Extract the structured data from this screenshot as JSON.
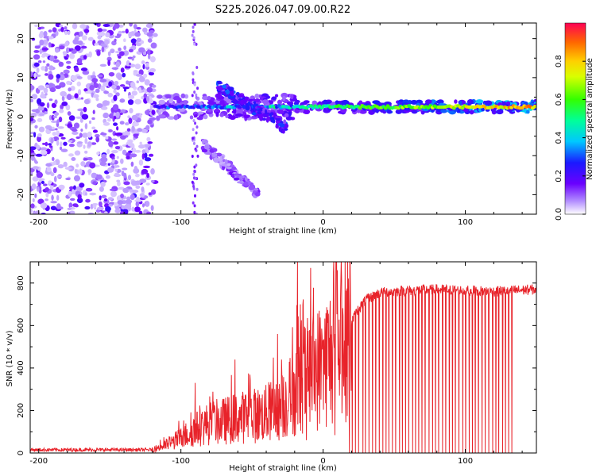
{
  "title": "S225.2026.047.09.00.R22",
  "chart_data": [
    {
      "type": "heatmap",
      "name": "spectrogram",
      "xlabel": "Height of straight line (km)",
      "ylabel": "Frequency (Hz)",
      "xlim": [
        -206,
        150
      ],
      "ylim": [
        -25,
        24
      ],
      "xticks": [
        -200,
        -100,
        0,
        100
      ],
      "yticks": [
        -20,
        -10,
        0,
        10,
        20
      ],
      "colorbar": {
        "label": "Normalized spectral amplitude",
        "range": [
          0,
          1
        ],
        "ticks": [
          0.0,
          0.2,
          0.4,
          0.6,
          0.8
        ]
      },
      "features": [
        {
          "name": "noise",
          "x_range": [
            -206,
            -118
          ],
          "freq_range": [
            -25,
            24
          ],
          "amplitude": 0.08
        },
        {
          "name": "main-band",
          "x_range": [
            -118,
            150
          ],
          "freq_center": 2.5,
          "amplitude_start": 0.25,
          "amplitude_end": 0.85
        },
        {
          "name": "chirp-upper",
          "x_range": [
            -75,
            -25
          ],
          "freq_start": 8,
          "freq_end": -3,
          "amplitude": 0.25
        },
        {
          "name": "chirp-lower",
          "x_range": [
            -85,
            -45
          ],
          "freq_start": -7,
          "freq_end": -20,
          "amplitude": 0.12
        },
        {
          "name": "vertical-streak",
          "x_range": [
            -92,
            -88
          ],
          "freq_range": [
            -25,
            24
          ],
          "amplitude": 0.12
        }
      ]
    },
    {
      "type": "line",
      "name": "snr",
      "xlabel": "Height of straight line (km)",
      "ylabel": "SNR (10 * v/v)",
      "xlim": [
        -206,
        150
      ],
      "ylim": [
        0,
        900
      ],
      "xticks": [
        -200,
        -100,
        0,
        100
      ],
      "yticks": [
        0,
        200,
        400,
        600,
        800
      ],
      "color": "#e8232a",
      "profile": [
        [
          -206,
          15
        ],
        [
          -120,
          15
        ],
        [
          -110,
          40
        ],
        [
          -100,
          70
        ],
        [
          -90,
          110
        ],
        [
          -80,
          140
        ],
        [
          -70,
          150
        ],
        [
          -60,
          165
        ],
        [
          -50,
          175
        ],
        [
          -40,
          185
        ],
        [
          -30,
          215
        ],
        [
          -25,
          250
        ],
        [
          -20,
          290
        ],
        [
          -15,
          340
        ],
        [
          -10,
          370
        ],
        [
          -5,
          390
        ],
        [
          0,
          420
        ],
        [
          5,
          460
        ],
        [
          10,
          510
        ],
        [
          15,
          570
        ],
        [
          20,
          620
        ],
        [
          25,
          680
        ],
        [
          30,
          720
        ],
        [
          40,
          755
        ],
        [
          60,
          765
        ],
        [
          80,
          770
        ],
        [
          100,
          765
        ],
        [
          120,
          760
        ],
        [
          150,
          770
        ]
      ],
      "spikes": [
        [
          -90,
          330
        ],
        [
          -62,
          440
        ],
        [
          -32,
          560
        ],
        [
          -18,
          900
        ],
        [
          -16,
          700
        ],
        [
          -12,
          400
        ],
        [
          8,
          560
        ]
      ],
      "dropouts_x_range": [
        18,
        135
      ],
      "dropouts_count": 50
    }
  ]
}
